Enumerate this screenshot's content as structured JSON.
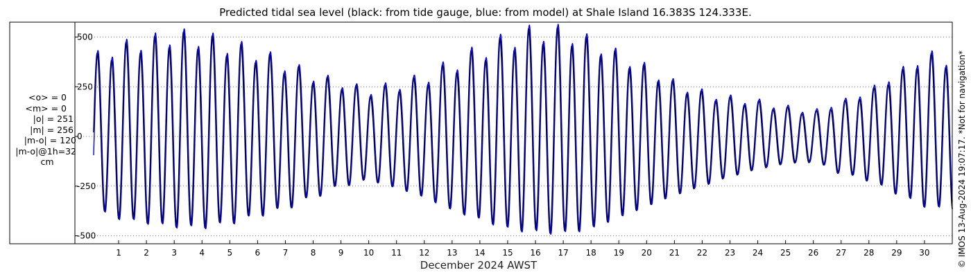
{
  "chart_data": {
    "type": "line",
    "title": "Predicted tidal sea level (black: from tide gauge, blue: from model) at Shale Island 16.383S 124.333E.",
    "xlabel": "December 2024 AWST",
    "ylabel": "",
    "y_unit": "cm",
    "x_unit": "day of month",
    "xlim": [
      0.1,
      31.0
    ],
    "ylim": [
      -540,
      575
    ],
    "x_ticks": [
      "1",
      "2",
      "3",
      "4",
      "5",
      "6",
      "7",
      "8",
      "9",
      "10",
      "11",
      "12",
      "13",
      "14",
      "15",
      "16",
      "17",
      "18",
      "19",
      "20",
      "21",
      "22",
      "23",
      "24",
      "25",
      "26",
      "27",
      "28",
      "29",
      "30"
    ],
    "y_ticks": [
      {
        "value": 500,
        "label": "500"
      },
      {
        "value": 250,
        "label": "250"
      },
      {
        "value": 0,
        "label": "0"
      },
      {
        "value": -250,
        "label": "-250"
      },
      {
        "value": -500,
        "label": "-500"
      }
    ],
    "grid": true,
    "legend": "none",
    "series": [
      {
        "name": "black: from tide gauge",
        "color": "#000000",
        "amplitude_scale": 1.0,
        "phase_shift_hours": 0,
        "offset": 0
      },
      {
        "name": "blue: from model",
        "color": "#0000e0",
        "amplitude_scale": 1.02,
        "phase_shift_hours": 0.6,
        "offset": 5
      }
    ],
    "daily_peaks": [
      {
        "day": 0.3,
        "high": 420,
        "low": -410
      },
      {
        "day": 1,
        "high": 470,
        "low": -445
      },
      {
        "day": 2,
        "high": 500,
        "low": -470
      },
      {
        "day": 3,
        "high": 530,
        "low": -490
      },
      {
        "day": 4,
        "high": 520,
        "low": -495
      },
      {
        "day": 5,
        "high": 480,
        "low": -470
      },
      {
        "day": 6,
        "high": 440,
        "low": -430
      },
      {
        "day": 7,
        "high": 380,
        "low": -390
      },
      {
        "day": 8,
        "high": 320,
        "low": -330
      },
      {
        "day": 9,
        "high": 280,
        "low": -270
      },
      {
        "day": 10,
        "high": 240,
        "low": -240
      },
      {
        "day": 11,
        "high": 270,
        "low": -280
      },
      {
        "day": 12,
        "high": 310,
        "low": -330
      },
      {
        "day": 13,
        "high": 380,
        "low": -400
      },
      {
        "day": 14,
        "high": 450,
        "low": -450
      },
      {
        "day": 15,
        "high": 510,
        "low": -500
      },
      {
        "day": 16,
        "high": 550,
        "low": -520
      },
      {
        "day": 17,
        "high": 550,
        "low": -525
      },
      {
        "day": 18,
        "high": 500,
        "low": -500
      },
      {
        "day": 19,
        "high": 430,
        "low": -440
      },
      {
        "day": 20,
        "high": 360,
        "low": -380
      },
      {
        "day": 21,
        "high": 280,
        "low": -320
      },
      {
        "day": 22,
        "high": 230,
        "low": -270
      },
      {
        "day": 23,
        "high": 200,
        "low": -220
      },
      {
        "day": 24,
        "high": 180,
        "low": -180
      },
      {
        "day": 25,
        "high": 150,
        "low": -150
      },
      {
        "day": 26,
        "high": 130,
        "low": -140
      },
      {
        "day": 27,
        "high": 180,
        "low": -200
      },
      {
        "day": 28,
        "high": 240,
        "low": -240
      },
      {
        "day": 29,
        "high": 330,
        "low": -310
      },
      {
        "day": 30,
        "high": 420,
        "low": -380
      },
      {
        "day": 31,
        "high": 410,
        "low": -400
      }
    ]
  },
  "stats": {
    "mean_obs": "<o> = 0",
    "mean_model": "<m> = 0",
    "abs_obs": "|o| = 251",
    "abs_model": "|m| = 256",
    "abs_diff": "|m-o| = 120",
    "abs_diff_1h": "|m-o|@1h=32",
    "unit": "cm"
  },
  "copyright": "© IMOS 13-Aug-2024 19:07:17. *Not for navigation*"
}
